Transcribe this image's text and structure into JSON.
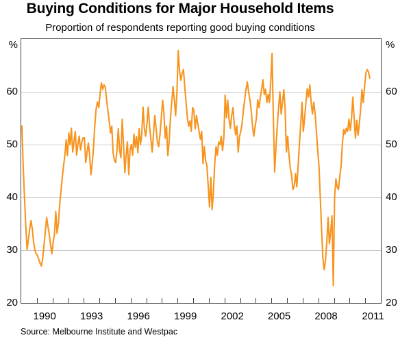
{
  "page": {
    "title": "Buying Conditions for Major Household Items",
    "subtitle": "Proportion of respondents reporting good buying conditions",
    "source": "Source: Melbourne Institute and Westpac"
  },
  "axes": {
    "left_unit": "%",
    "right_unit": "%",
    "y_ticks": [
      20,
      30,
      40,
      50,
      60
    ],
    "x_labeled_years": [
      1990,
      1993,
      1996,
      1999,
      2002,
      2005,
      2008,
      2011
    ],
    "x_minor_tick_years": [
      1990,
      1991,
      1992,
      1993,
      1994,
      1995,
      1996,
      1997,
      1998,
      1999,
      2000,
      2001,
      2002,
      2003,
      2004,
      2005,
      2006,
      2007,
      2008,
      2009,
      2010,
      2011
    ]
  },
  "colors": {
    "line": "#F7941E",
    "grid": "#C8C8C8",
    "frame": "#3F3F3F",
    "text": "#000000"
  },
  "chart_data": {
    "type": "line",
    "title": "Buying Conditions for Major Household Items",
    "subtitle": "Proportion of respondents reporting good buying conditions",
    "ylabel": "%",
    "ylim": [
      20,
      70
    ],
    "x_years_span": [
      1989,
      2012
    ],
    "x_start": "1989-01",
    "x_end": "2011-04",
    "frequency": "monthly",
    "grid": true,
    "gridline_values": [
      30,
      40,
      50,
      60
    ],
    "legend_position": "none",
    "series": [
      {
        "name": "Proportion of respondents reporting good buying conditions",
        "color": "#F7941E",
        "values": [
          53.5,
          46.0,
          40.0,
          34.5,
          30.1,
          32.0,
          34.0,
          35.6,
          34.0,
          31.5,
          30.0,
          29.3,
          29.0,
          28.2,
          27.5,
          27.0,
          28.5,
          31.0,
          33.5,
          36.2,
          34.5,
          33.0,
          31.0,
          29.3,
          31.5,
          33.0,
          37.3,
          33.2,
          35.0,
          38.6,
          41.2,
          43.8,
          46.0,
          48.0,
          50.9,
          47.9,
          52.2,
          50.0,
          53.1,
          48.6,
          50.5,
          52.5,
          48.0,
          50.0,
          51.6,
          49.0,
          50.5,
          51.3,
          51.3,
          46.6,
          48.5,
          50.3,
          48.0,
          44.3,
          46.5,
          49.5,
          53.8,
          56.8,
          58.1,
          57.0,
          59.5,
          61.7,
          60.5,
          61.3,
          60.9,
          58.5,
          56.5,
          54.5,
          52.2,
          53.5,
          48.5,
          47.0,
          46.6,
          49.0,
          53.0,
          49.0,
          47.5,
          54.8,
          50.0,
          44.7,
          48.0,
          50.5,
          44.3,
          49.0,
          50.0,
          48.0,
          52.0,
          49.5,
          51.5,
          48.5,
          53.0,
          50.0,
          52.0,
          57.1,
          53.0,
          51.6,
          54.0,
          57.1,
          53.5,
          51.0,
          48.6,
          52.0,
          55.5,
          53.0,
          50.5,
          49.6,
          52.0,
          55.0,
          58.4,
          56.0,
          51.2,
          53.5,
          47.9,
          50.5,
          55.0,
          58.0,
          61.0,
          58.5,
          55.5,
          60.0,
          67.8,
          64.0,
          62.2,
          63.5,
          64.2,
          61.0,
          58.0,
          55.1,
          53.5,
          54.5,
          52.5,
          57.0,
          56.5,
          53.0,
          55.5,
          54.0,
          52.5,
          51.0,
          52.5,
          46.4,
          49.6,
          47.0,
          46.0,
          42.1,
          38.2,
          43.8,
          37.7,
          41.0,
          46.4,
          49.6,
          48.0,
          50.5,
          50.0,
          51.6,
          48.9,
          51.2,
          59.4,
          55.1,
          58.4,
          54.8,
          53.1,
          55.5,
          57.0,
          53.9,
          51.9,
          53.5,
          48.6,
          51.5,
          52.5,
          54.0,
          56.5,
          58.5,
          60.5,
          61.9,
          60.0,
          58.5,
          56.5,
          53.5,
          51.6,
          53.5,
          55.0,
          58.5,
          57.0,
          59.0,
          60.5,
          62.3,
          59.5,
          60.5,
          58.0,
          59.5,
          58.0,
          62.0,
          67.3,
          55.0,
          44.8,
          49.5,
          53.5,
          57.0,
          60.0,
          55.8,
          58.0,
          60.4,
          57.0,
          48.6,
          51.6,
          48.0,
          45.5,
          44.2,
          41.5,
          42.1,
          44.5,
          42.0,
          46.0,
          50.0,
          54.0,
          58.0,
          52.5,
          55.0,
          58.0,
          60.6,
          59.0,
          61.3,
          58.0,
          55.8,
          58.0,
          56.0,
          52.6,
          49.0,
          46.0,
          40.0,
          34.0,
          28.5,
          26.3,
          28.0,
          31.5,
          36.2,
          31.2,
          33.5,
          36.5,
          23.3,
          40.0,
          43.5,
          42.0,
          41.5,
          44.0,
          46.0,
          50.3,
          52.9,
          52.0,
          53.1,
          52.5,
          54.8,
          52.7,
          55.0,
          59.0,
          55.0,
          51.2,
          54.6,
          51.8,
          54.0,
          56.8,
          60.4,
          58.0,
          61.0,
          63.5,
          64.2,
          63.8,
          62.6
        ]
      }
    ]
  }
}
